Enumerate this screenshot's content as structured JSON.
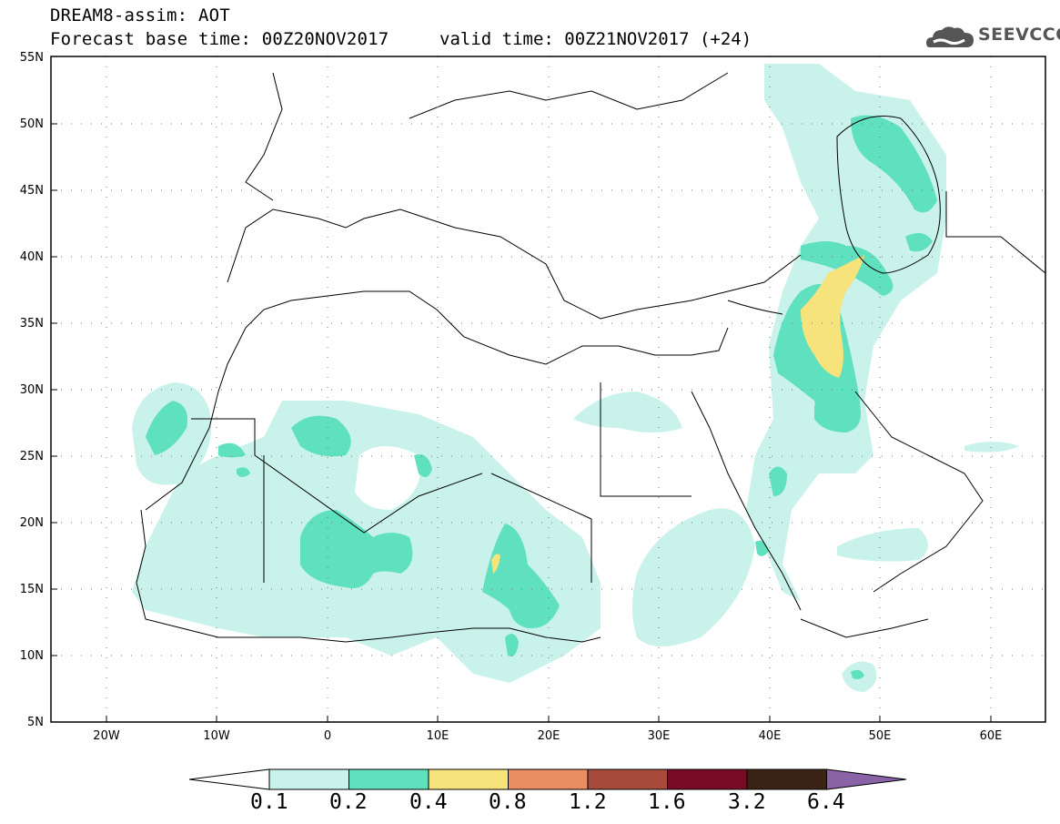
{
  "header": {
    "title_line1": "DREAM8-assim: AOT",
    "title_line2": "Forecast base time: 00Z20NOV2017",
    "valid_time": "valid time: 00Z21NOV2017 (+24)"
  },
  "logo": {
    "text": "SEEVCCC",
    "icon": "cloud-logo-icon"
  },
  "map": {
    "variable": "AOT",
    "lat_range": [
      5,
      55
    ],
    "lon_range": [
      -25,
      65
    ],
    "lat_labels": [
      "55N",
      "50N",
      "45N",
      "40N",
      "35N",
      "30N",
      "25N",
      "20N",
      "15N",
      "10N",
      "5N"
    ],
    "lon_labels": [
      "20W",
      "10W",
      "0",
      "10E",
      "20E",
      "30E",
      "40E",
      "50E",
      "60E"
    ],
    "grid": true
  },
  "colorbar": {
    "labels": [
      "0.1",
      "0.2",
      "0.4",
      "0.8",
      "1.2",
      "1.6",
      "3.2",
      "6.4"
    ],
    "colors": [
      "#ffffff",
      "#c8f2ea",
      "#5fe0be",
      "#f7e37c",
      "#e98d64",
      "#a84a3c",
      "#7a0b26",
      "#3b2416",
      "#8a63a6"
    ]
  }
}
